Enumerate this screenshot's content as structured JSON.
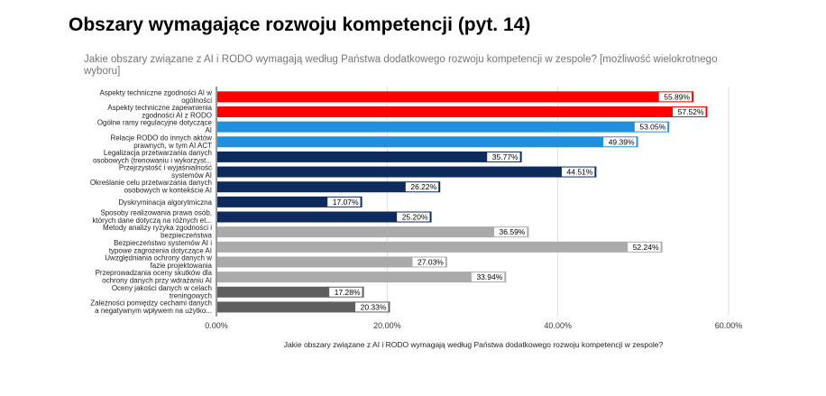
{
  "chart_data": {
    "type": "bar",
    "orientation": "horizontal",
    "title": "Obszary wymagające rozwoju kompetencji (pyt. 14)",
    "subtitle": "Jakie obszary związane z AI i RODO wymagają według Państwa dodatkowego rozwoju kompetencji w zespole? [możliwość wielokrotnego wyboru]",
    "xlabel": "Jakie obszary związane z AI i RODO wymagają według Państwa dodatkowego rozwoju kompetencji w zespole?",
    "xlim": [
      0,
      60
    ],
    "xticks": [
      "0.00%",
      "20.00%",
      "40.00%",
      "60.00%"
    ],
    "grid": true,
    "categories": [
      [
        "Aspekty techniczne zgodności AI w",
        "ogólności"
      ],
      [
        "Aspekty techniczne zapewnienia",
        "zgodności AI z RODO"
      ],
      [
        "Ogólne ramy regulacyjne dotyczące",
        "AI"
      ],
      [
        "Relacje RODO do innych aktów",
        "prawnych, w tym AI ACT"
      ],
      [
        "Legalizacja przetwarzania danych",
        "osobowych (trenowaniu i wykorzyst..."
      ],
      [
        "Przejrzystość i wyjaśnialność",
        "systemów AI"
      ],
      [
        "Określanie celu przetwarzania danych",
        "osobowych w kontekście AI"
      ],
      [
        "Dyskryminacja algorytmiczna"
      ],
      [
        "Sposoby realizowania prawa osób,",
        "których dane dotyczą na różnych et..."
      ],
      [
        "Metody analizy ryzyka zgodności i",
        "bezpieczeństwa"
      ],
      [
        "Bezpieczeństwo systemów AI i",
        "typowe zagrożenia dotyczące AI"
      ],
      [
        "Uwzględniania ochrony danych w",
        "fazie projektowania"
      ],
      [
        "Przeprowadzania oceny skutków dla",
        "ochrony danych przy wdrażaniu AI"
      ],
      [
        "Oceny jakości danych w celach",
        "treningowych"
      ],
      [
        "Zależności pomiędzy cechami danych",
        "a negatywnym wpływem na użytko..."
      ]
    ],
    "values": [
      55.89,
      57.52,
      53.05,
      49.39,
      35.77,
      44.51,
      26.22,
      17.07,
      25.2,
      36.59,
      52.24,
      27.03,
      33.94,
      17.28,
      20.33
    ],
    "labels": [
      "55.89%",
      "57.52%",
      "53.05%",
      "49.39%",
      "35.77%",
      "44.51%",
      "26.22%",
      "17.07%",
      "25.20%",
      "36.59%",
      "52.24%",
      "27.03%",
      "33.94%",
      "17.28%",
      "20.33%"
    ],
    "colors": [
      "#ff0000",
      "#ff0000",
      "#1f8fe0",
      "#1f8fe0",
      "#0d2b5c",
      "#0d2b5c",
      "#0d2b5c",
      "#0d2b5c",
      "#0d2b5c",
      "#aaaaaa",
      "#aaaaaa",
      "#aaaaaa",
      "#aaaaaa",
      "#5f5f5f",
      "#5f5f5f"
    ]
  }
}
